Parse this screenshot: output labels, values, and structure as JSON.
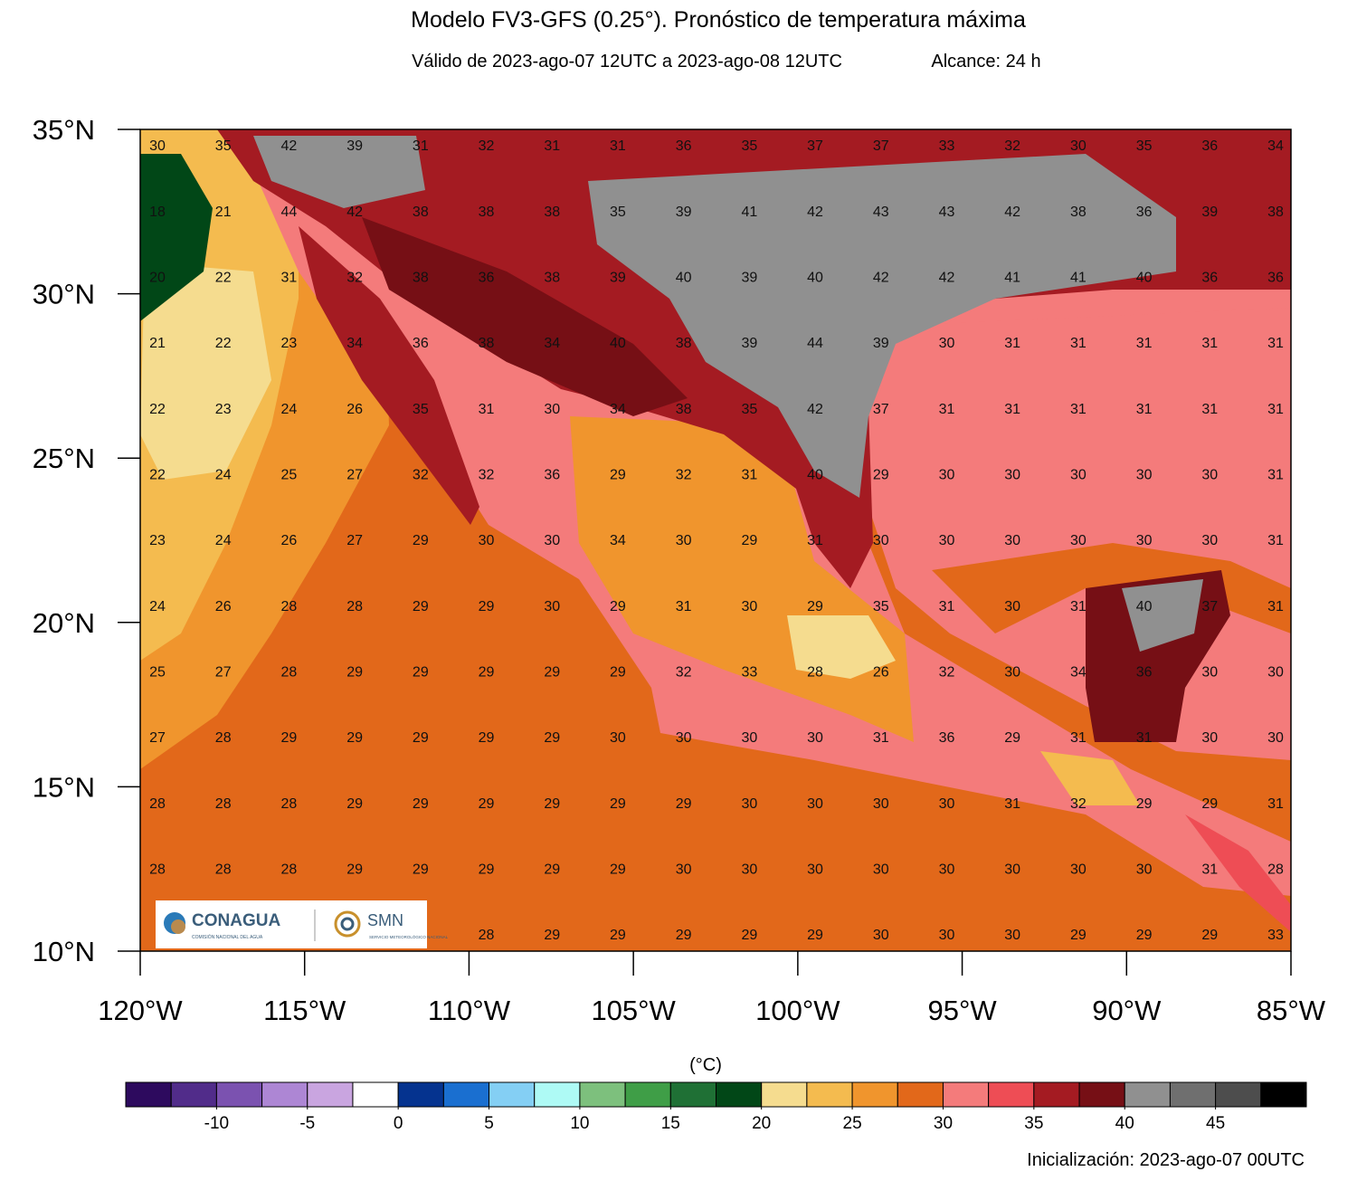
{
  "header": {
    "title": "Modelo FV3-GFS (0.25°). Pronóstico de temperatura máxima",
    "subtitle": "Válido de 2023-ago-07 12UTC a 2023-ago-08 12UTC",
    "range": "Alcance: 24 h"
  },
  "map": {
    "lonlim": [
      -120,
      -85
    ],
    "latlim": [
      10,
      35
    ],
    "lonticks": [
      {
        "value": -120,
        "label": "120°W"
      },
      {
        "value": -115,
        "label": "115°W"
      },
      {
        "value": -110,
        "label": "110°W"
      },
      {
        "value": -105,
        "label": "105°W"
      },
      {
        "value": -100,
        "label": "100°W"
      },
      {
        "value": -95,
        "label": "95°W"
      },
      {
        "value": -90,
        "label": "90°W"
      },
      {
        "value": -85,
        "label": "85°W"
      }
    ],
    "latticks": [
      {
        "value": 10,
        "label": "10°N"
      },
      {
        "value": 15,
        "label": "15°N"
      },
      {
        "value": 20,
        "label": "20°N"
      },
      {
        "value": 25,
        "label": "25°N"
      },
      {
        "value": 30,
        "label": "30°N"
      },
      {
        "value": 35,
        "label": "35°N"
      }
    ],
    "grid": [
      [
        30,
        35,
        42,
        39,
        31,
        32,
        31,
        31,
        36,
        35,
        37,
        37,
        33,
        32,
        30,
        35,
        36,
        34
      ],
      [
        18,
        21,
        44,
        42,
        38,
        38,
        38,
        35,
        39,
        41,
        42,
        43,
        43,
        42,
        38,
        36,
        39,
        38
      ],
      [
        20,
        22,
        31,
        32,
        38,
        36,
        38,
        39,
        40,
        39,
        40,
        42,
        42,
        41,
        41,
        40,
        36,
        36
      ],
      [
        21,
        22,
        23,
        34,
        36,
        38,
        34,
        40,
        38,
        39,
        44,
        39,
        30,
        31,
        31,
        31,
        31,
        31
      ],
      [
        22,
        23,
        24,
        26,
        35,
        31,
        30,
        34,
        38,
        35,
        42,
        37,
        31,
        31,
        31,
        31,
        31,
        31
      ],
      [
        22,
        24,
        25,
        27,
        32,
        32,
        36,
        29,
        32,
        31,
        40,
        29,
        30,
        30,
        30,
        30,
        30,
        31
      ],
      [
        23,
        24,
        26,
        27,
        29,
        30,
        30,
        34,
        30,
        29,
        31,
        30,
        30,
        30,
        30,
        30,
        30,
        31
      ],
      [
        24,
        26,
        28,
        28,
        29,
        29,
        30,
        29,
        31,
        30,
        29,
        35,
        31,
        30,
        31,
        40,
        37,
        31
      ],
      [
        25,
        27,
        28,
        29,
        29,
        29,
        29,
        29,
        32,
        33,
        28,
        26,
        32,
        30,
        34,
        36,
        30,
        30
      ],
      [
        27,
        28,
        29,
        29,
        29,
        29,
        29,
        30,
        30,
        30,
        30,
        31,
        36,
        29,
        31,
        31,
        30,
        30
      ],
      [
        28,
        28,
        28,
        29,
        29,
        29,
        29,
        29,
        29,
        30,
        30,
        30,
        30,
        31,
        32,
        29,
        29,
        31
      ],
      [
        28,
        28,
        28,
        29,
        29,
        29,
        29,
        29,
        30,
        30,
        30,
        30,
        30,
        30,
        30,
        30,
        31,
        28
      ],
      [
        null,
        null,
        null,
        null,
        null,
        28,
        29,
        29,
        29,
        29,
        29,
        30,
        30,
        30,
        29,
        29,
        29,
        33
      ]
    ]
  },
  "logos": {
    "conagua": "CONAGUA",
    "conagua_sub": "COMISIÓN NACIONAL DEL AGUA",
    "smn": "SMN",
    "smn_sub": "SERVICIO METEOROLÓGICO NACIONAL"
  },
  "colorbar": {
    "unit": "(°C)",
    "lim": [
      -15,
      50
    ],
    "colors": [
      "#2d0a5e",
      "#512c8a",
      "#7b52b0",
      "#ad86d4",
      "#c9a5e0",
      "#ffffff",
      "#05338f",
      "#1a6fd0",
      "#84cff4",
      "#aefaf5",
      "#7dc07d",
      "#3f9e47",
      "#1f7035",
      "#014717",
      "#f5dc8f",
      "#f4bb4f",
      "#f0952d",
      "#e2681a",
      "#f47b7b",
      "#ee4d55",
      "#a41b22",
      "#760f15",
      "#909090",
      "#6f6f6f",
      "#4d4d4d",
      "#000000"
    ],
    "ticks": [
      -10,
      -5,
      0,
      5,
      10,
      15,
      20,
      25,
      30,
      35,
      40,
      45
    ]
  },
  "footer": "Inicialización: 2023-ago-07 00UTC"
}
